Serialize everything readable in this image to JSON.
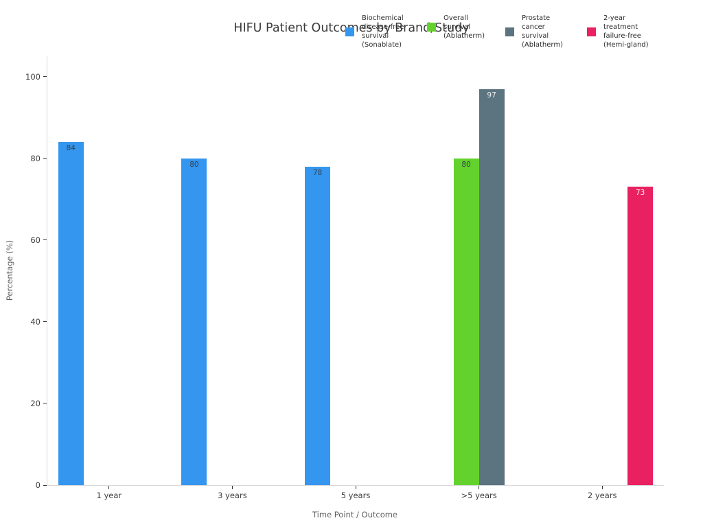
{
  "chart_data": {
    "type": "bar",
    "title": "HIFU Patient Outcomes by Brand/Study",
    "xlabel": "Time Point / Outcome",
    "ylabel": "Percentage (%)",
    "categories": [
      "1 year",
      "3 years",
      "5 years",
      ">5 years",
      "2 years"
    ],
    "series": [
      {
        "name": "Biochemical disease-free survival (Sonablate)",
        "legend_lines": [
          "Biochemical",
          "disease-free",
          "survival",
          "(Sonablate)"
        ],
        "color": "#3596f0",
        "value_label_color": "#32404c",
        "values": [
          84,
          80,
          78,
          null,
          null
        ]
      },
      {
        "name": "Overall survival (Ablatherm)",
        "legend_lines": [
          "Overall",
          "survival",
          "(Ablatherm)"
        ],
        "color": "#64d22d",
        "value_label_color": "#32404c",
        "values": [
          null,
          null,
          null,
          80,
          null
        ]
      },
      {
        "name": "Prostate cancer survival (Ablatherm)",
        "legend_lines": [
          "Prostate",
          "cancer",
          "survival",
          "(Ablatherm)"
        ],
        "color": "#5c7380",
        "value_label_color": "#f2f2f2",
        "values": [
          null,
          null,
          null,
          97,
          null
        ]
      },
      {
        "name": "2-year treatment failure-free (Hemi-gland)",
        "legend_lines": [
          "2-year",
          "treatment",
          "failure-free",
          "(Hemi-gland)"
        ],
        "color": "#ea2160",
        "value_label_color": "#f2f2f2",
        "values": [
          null,
          null,
          null,
          null,
          73
        ]
      }
    ],
    "y_ticks": [
      0,
      20,
      40,
      60,
      80,
      100
    ],
    "ylim": [
      0,
      105
    ],
    "grid": false,
    "legend_position": "top"
  },
  "colors": {
    "spine": "#d9d9d9",
    "tick": "#3a3a3a",
    "title_text": "#3a3a3a",
    "axis_label_text": "#5f5f5f",
    "tick_label_text": "#3c3c3c"
  }
}
